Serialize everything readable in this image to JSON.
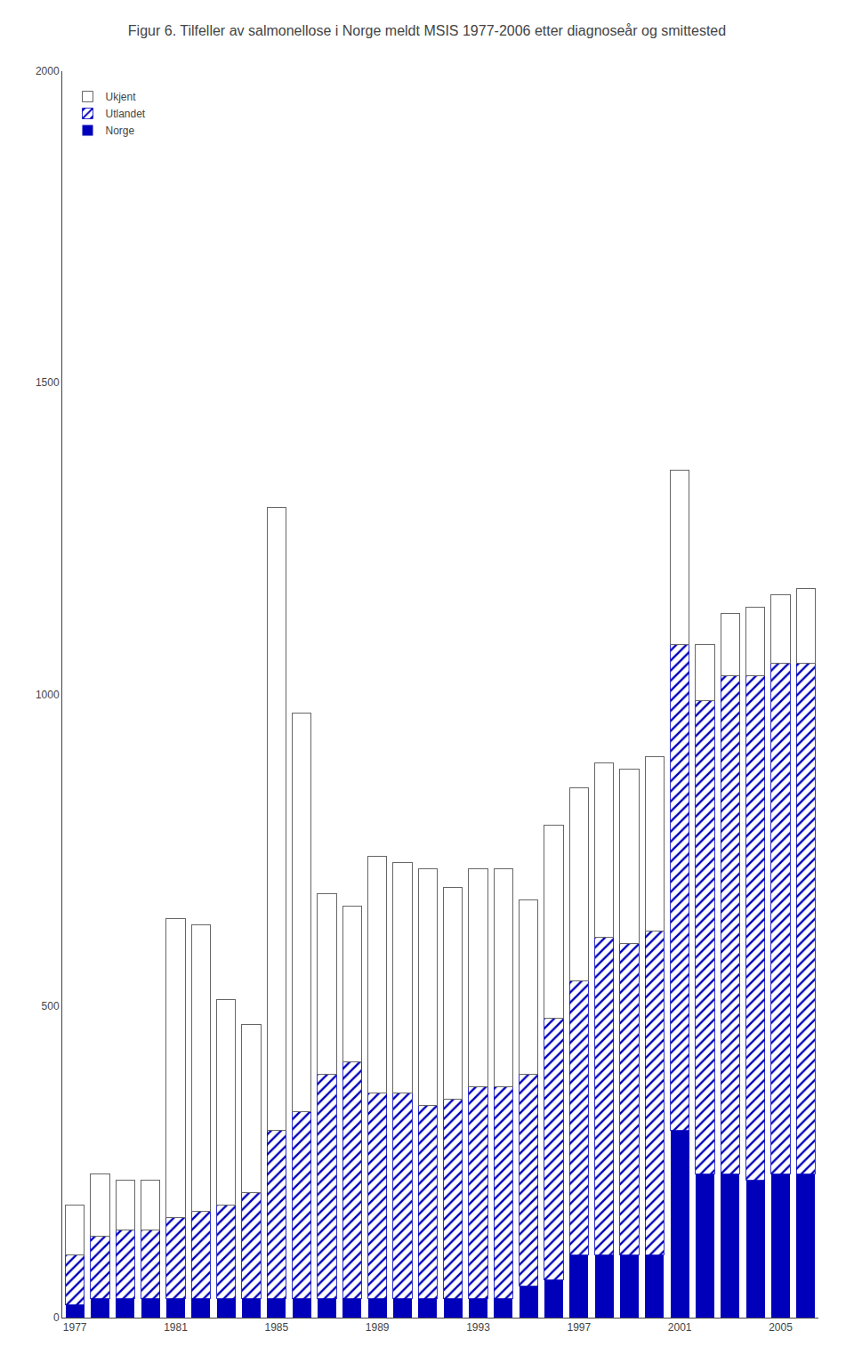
{
  "chart_data": {
    "type": "bar",
    "title": "Figur 6. Tilfeller av salmonellose i Norge meldt MSIS 1977-2006 etter diagnoseår og smittested",
    "categories": [
      "1977",
      null,
      null,
      null,
      "1981",
      null,
      null,
      null,
      "1985",
      null,
      null,
      null,
      "1989",
      null,
      null,
      null,
      "1993",
      null,
      null,
      null,
      "1997",
      null,
      null,
      null,
      "2001",
      null,
      null,
      null,
      "2005",
      null
    ],
    "series": [
      {
        "name": "Norge",
        "color": "#0000bb",
        "marker": "solid",
        "values": [
          20,
          30,
          30,
          30,
          30,
          30,
          30,
          30,
          30,
          30,
          30,
          30,
          30,
          30,
          30,
          30,
          30,
          30,
          50,
          60,
          100,
          100,
          100,
          100,
          300,
          230,
          230,
          220,
          230,
          230
        ]
      },
      {
        "name": "Utlandet",
        "color": "#0000bb",
        "marker": "hatch",
        "values": [
          80,
          100,
          110,
          110,
          130,
          140,
          150,
          170,
          270,
          300,
          360,
          380,
          330,
          330,
          310,
          320,
          340,
          340,
          340,
          420,
          440,
          510,
          500,
          520,
          780,
          760,
          800,
          810,
          820,
          820
        ]
      },
      {
        "name": "Ukjent",
        "color": "#666666",
        "marker": "outline",
        "values": [
          80,
          100,
          80,
          80,
          480,
          460,
          330,
          270,
          1000,
          640,
          290,
          250,
          380,
          370,
          380,
          340,
          350,
          350,
          280,
          310,
          310,
          280,
          280,
          280,
          280,
          90,
          100,
          110,
          110,
          120
        ]
      }
    ],
    "stacked": true,
    "ylim": [
      0,
      2000
    ],
    "yticks": [
      0,
      500,
      1000,
      1500,
      2000
    ],
    "grid": false,
    "legend": "upper left"
  }
}
